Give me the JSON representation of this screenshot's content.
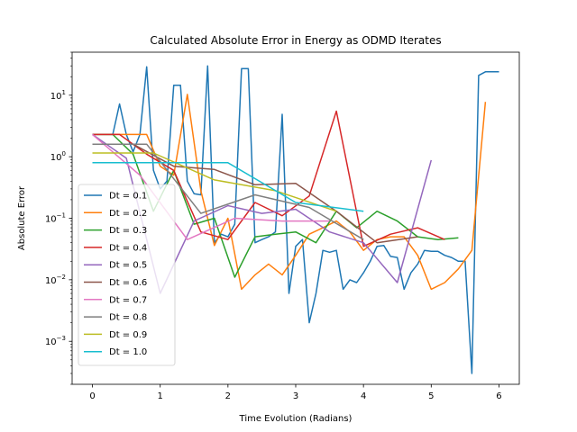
{
  "chart_data": {
    "type": "line",
    "title": "Calculated Absolute Error in Energy as ODMD Iterates",
    "xlabel": "Time Evolution (Radians)",
    "ylabel": "Absolute Error",
    "xlim": [
      -0.3,
      6.3
    ],
    "ylim": [
      0.0002,
      50
    ],
    "yscale": "log",
    "xticks": [
      0,
      1,
      2,
      3,
      4,
      5,
      6
    ],
    "xtick_labels": [
      "0",
      "1",
      "2",
      "3",
      "4",
      "5",
      "6"
    ],
    "yticks": [
      0.001,
      0.01,
      0.1,
      1,
      10
    ],
    "ytick_labels": [
      {
        "base": "10",
        "exp": "−3"
      },
      {
        "base": "10",
        "exp": "−2"
      },
      {
        "base": "10",
        "exp": "−1"
      },
      {
        "base": "10",
        "exp": "0"
      },
      {
        "base": "10",
        "exp": "1"
      }
    ],
    "grid": false,
    "legend_position": "lower-left",
    "series": [
      {
        "name": "Dt = 0.1",
        "color": "#1f77b4",
        "x": [
          0,
          0.1,
          0.2,
          0.3,
          0.4,
          0.5,
          0.6,
          0.7,
          0.8,
          0.9,
          1.0,
          1.1,
          1.2,
          1.3,
          1.4,
          1.5,
          1.6,
          1.7,
          1.8,
          1.9,
          2.0,
          2.1,
          2.2,
          2.3,
          2.4,
          2.5,
          2.6,
          2.7,
          2.8,
          2.9,
          3.0,
          3.1,
          3.2,
          3.3,
          3.4,
          3.5,
          3.6,
          3.7,
          3.8,
          3.9,
          4.0,
          4.1,
          4.2,
          4.3,
          4.4,
          4.5,
          4.6,
          4.7,
          4.8,
          4.9,
          5.0,
          5.1,
          5.2,
          5.3,
          5.4,
          5.5,
          5.6,
          5.7,
          5.8,
          5.9,
          6.0
        ],
        "y": [
          2.3,
          2.3,
          2.3,
          2.3,
          7.2,
          2.3,
          1.2,
          2.3,
          29,
          0.6,
          0.3,
          0.4,
          14.5,
          14.5,
          0.4,
          0.25,
          0.24,
          30,
          0.04,
          0.055,
          0.05,
          0.08,
          27,
          27,
          0.04,
          0.045,
          0.05,
          0.06,
          4.9,
          0.006,
          0.035,
          0.045,
          0.002,
          0.006,
          0.03,
          0.028,
          0.03,
          0.007,
          0.01,
          0.009,
          0.013,
          0.02,
          0.035,
          0.036,
          0.024,
          0.023,
          0.007,
          0.013,
          0.018,
          0.03,
          0.029,
          0.029,
          0.025,
          0.023,
          0.02,
          0.02,
          0.0003,
          21,
          24,
          24,
          24
        ]
      },
      {
        "name": "Dt = 0.2",
        "color": "#ff7f0e",
        "x": [
          0,
          0.2,
          0.4,
          0.6,
          0.8,
          1.0,
          1.2,
          1.4,
          1.6,
          1.8,
          2.0,
          2.2,
          2.4,
          2.6,
          2.8,
          3.0,
          3.2,
          3.4,
          3.6,
          3.8,
          4.0,
          4.2,
          4.4,
          4.6,
          4.8,
          5.0,
          5.2,
          5.4,
          5.6,
          5.8
        ],
        "y": [
          2.3,
          2.3,
          2.3,
          2.3,
          2.3,
          0.7,
          0.5,
          10.3,
          0.28,
          0.036,
          0.1,
          0.007,
          0.012,
          0.018,
          0.012,
          0.025,
          0.055,
          0.07,
          0.09,
          0.06,
          0.03,
          0.045,
          0.05,
          0.05,
          0.025,
          0.007,
          0.009,
          0.015,
          0.03,
          7.8
        ]
      },
      {
        "name": "Dt = 0.3",
        "color": "#2ca02c",
        "x": [
          0,
          0.3,
          0.6,
          0.9,
          1.2,
          1.5,
          1.8,
          2.1,
          2.4,
          2.7,
          3.0,
          3.3,
          3.6,
          3.9,
          4.2,
          4.5,
          4.8,
          5.1,
          5.4
        ],
        "y": [
          2.3,
          2.3,
          1.1,
          0.13,
          0.6,
          0.08,
          0.1,
          0.011,
          0.05,
          0.055,
          0.06,
          0.04,
          0.13,
          0.07,
          0.13,
          0.09,
          0.05,
          0.045,
          0.048
        ]
      },
      {
        "name": "Dt = 0.4",
        "color": "#d62728",
        "x": [
          0,
          0.4,
          0.8,
          1.2,
          1.6,
          2.0,
          2.4,
          2.8,
          3.2,
          3.6,
          4.0,
          4.4,
          4.8,
          5.2
        ],
        "y": [
          2.3,
          2.3,
          1.1,
          0.6,
          0.06,
          0.045,
          0.18,
          0.11,
          0.23,
          5.5,
          0.035,
          0.055,
          0.07,
          0.045
        ]
      },
      {
        "name": "Dt = 0.5",
        "color": "#9467bd",
        "x": [
          0,
          0.5,
          1.0,
          1.5,
          2.0,
          2.5,
          3.0,
          3.5,
          4.0,
          4.5,
          5.0
        ],
        "y": [
          2.3,
          0.95,
          0.006,
          0.09,
          0.16,
          0.12,
          0.14,
          0.06,
          0.04,
          0.009,
          0.88
        ]
      },
      {
        "name": "Dt = 0.6",
        "color": "#8c564b",
        "x": [
          0,
          0.6,
          1.2,
          1.8,
          2.4,
          3.0,
          3.6,
          4.2,
          4.8
        ],
        "y": [
          1.6,
          1.6,
          0.7,
          0.62,
          0.35,
          0.37,
          0.13,
          0.04,
          0.05
        ]
      },
      {
        "name": "Dt = 0.7",
        "color": "#e377c2",
        "x": [
          0,
          0.7,
          1.4,
          2.1,
          2.8,
          3.5
        ],
        "y": [
          2.3,
          0.5,
          0.045,
          0.1,
          0.09,
          0.09
        ]
      },
      {
        "name": "Dt = 0.8",
        "color": "#7f7f7f",
        "x": [
          0,
          0.8,
          1.6,
          2.4,
          3.2,
          4.0
        ],
        "y": [
          1.6,
          1.6,
          0.12,
          0.24,
          0.15,
          0.045
        ]
      },
      {
        "name": "Dt = 0.9",
        "color": "#bcbd22",
        "x": [
          0,
          0.9,
          1.8,
          2.7,
          3.6
        ],
        "y": [
          1.15,
          1.15,
          0.42,
          0.28,
          0.13
        ]
      },
      {
        "name": "Dt = 1.0",
        "color": "#17becf",
        "x": [
          0,
          1.0,
          2.0,
          3.0,
          4.0
        ],
        "y": [
          0.8,
          0.8,
          0.8,
          0.18,
          0.13
        ]
      }
    ]
  }
}
